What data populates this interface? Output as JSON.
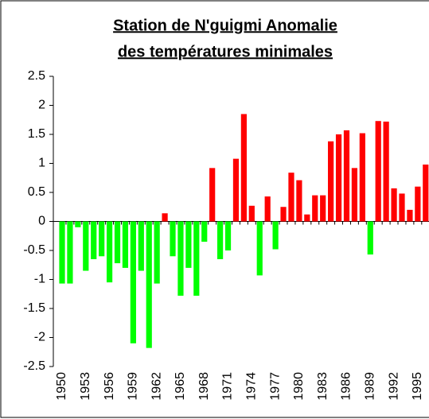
{
  "chart_data": {
    "type": "bar",
    "title": [
      "Station de N'guigmi Anomalie",
      "des températures minimales"
    ],
    "categories": [
      "1950",
      null,
      null,
      "1953",
      null,
      null,
      "1956",
      null,
      null,
      "1959",
      null,
      null,
      "1962",
      null,
      null,
      "1965",
      null,
      null,
      "1968",
      null,
      null,
      "1971",
      null,
      null,
      "1974",
      null,
      null,
      "1977",
      null,
      null,
      "1980",
      null,
      null,
      "1983",
      null,
      null,
      "1986",
      null,
      null,
      "1989",
      null,
      null,
      "1992",
      null,
      null,
      "1995",
      null
    ],
    "values": [
      -1.07,
      -1.07,
      -0.1,
      -0.85,
      -0.65,
      -0.6,
      -1.05,
      -0.72,
      -0.8,
      -2.1,
      -0.85,
      -2.18,
      -1.07,
      0.14,
      -0.6,
      -1.28,
      -0.8,
      -1.28,
      -0.35,
      0.92,
      -0.65,
      -0.5,
      1.08,
      1.85,
      0.27,
      -0.93,
      0.43,
      -0.48,
      0.25,
      0.84,
      0.71,
      0.12,
      0.45,
      0.45,
      1.38,
      1.5,
      1.57,
      0.92,
      1.52,
      -0.57,
      1.73,
      1.72,
      0.57,
      0.48,
      0.2,
      0.6,
      0.98
    ],
    "positive_color": "#ff0000",
    "negative_color": "#00ff00",
    "ylim": [
      -2.5,
      2.5
    ],
    "yticks": [
      -2.5,
      -2,
      -1.5,
      -1,
      -0.5,
      0,
      0.5,
      1,
      1.5,
      2,
      2.5
    ],
    "grid": false
  }
}
